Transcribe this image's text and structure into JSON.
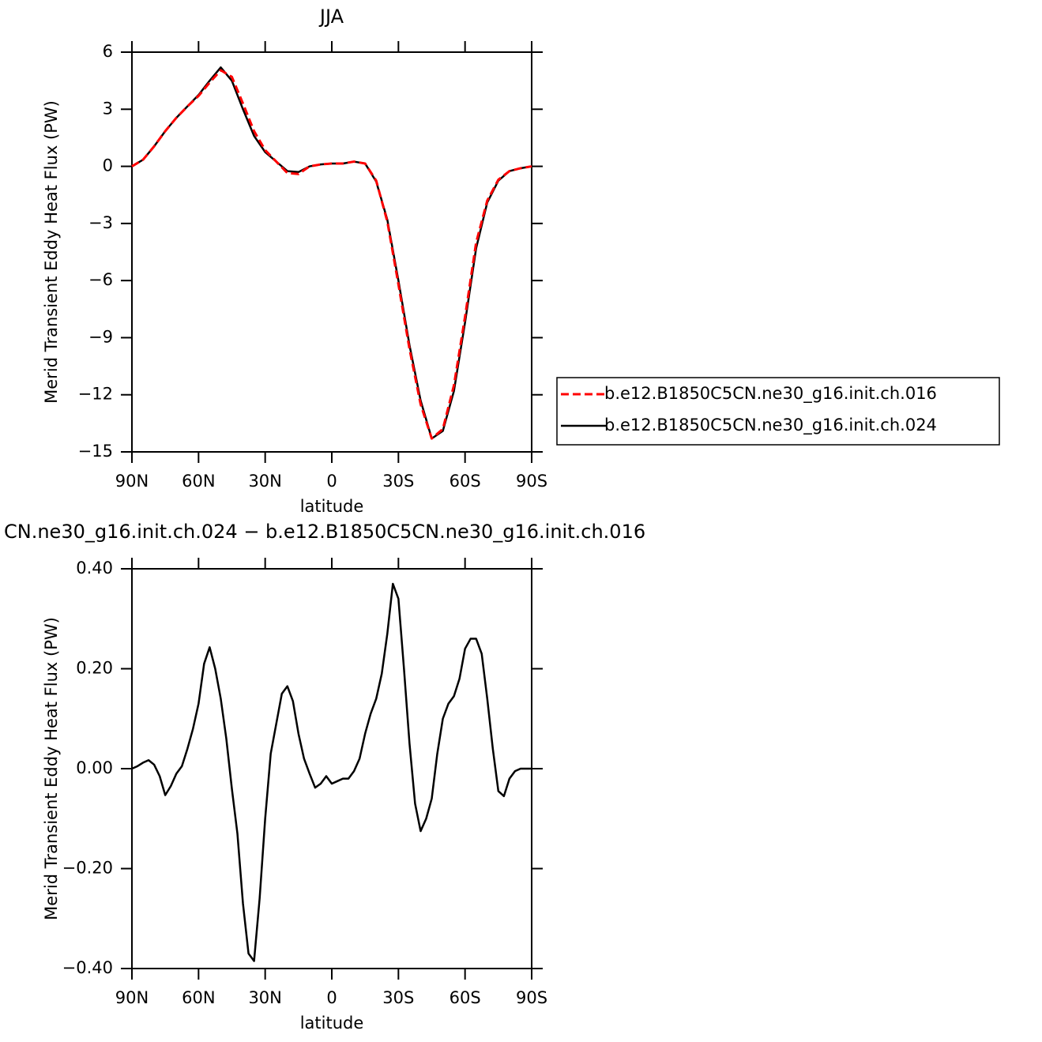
{
  "chart_data": [
    {
      "type": "line",
      "title": "JJA",
      "xlabel": "latitude",
      "ylabel": "Merid Transient Eddy Heat Flux (PW)",
      "x": [
        90,
        85,
        80,
        75,
        70,
        65,
        60,
        55,
        50,
        45,
        40,
        35,
        30,
        25,
        20,
        15,
        10,
        5,
        0,
        -5,
        -10,
        -15,
        -20,
        -25,
        -30,
        -35,
        -40,
        -45,
        -50,
        -55,
        -60,
        -65,
        -70,
        -75,
        -80,
        -85,
        -90
      ],
      "series": [
        {
          "name": "b.e12.B1850C5CN.ne30_g16.init.ch.016",
          "color": "#ff0000",
          "dash": true,
          "values": [
            0,
            0.35,
            1.05,
            1.85,
            2.55,
            3.15,
            3.7,
            4.4,
            5.05,
            4.7,
            3.3,
            1.85,
            0.85,
            0.25,
            -0.35,
            -0.4,
            0.0,
            0.1,
            0.15,
            0.15,
            0.25,
            0.15,
            -0.75,
            -2.9,
            -6.2,
            -9.6,
            -12.5,
            -14.3,
            -13.8,
            -11.5,
            -7.9,
            -4.0,
            -1.8,
            -0.7,
            -0.25,
            -0.1,
            0
          ]
        },
        {
          "name": "b.e12.B1850C5CN.ne30_g16.init.ch.024",
          "color": "#000000",
          "dash": false,
          "values": [
            0,
            0.35,
            1.05,
            1.85,
            2.55,
            3.15,
            3.75,
            4.5,
            5.2,
            4.5,
            3.0,
            1.6,
            0.75,
            0.25,
            -0.25,
            -0.3,
            0.0,
            0.1,
            0.15,
            0.15,
            0.25,
            0.15,
            -0.8,
            -2.8,
            -6.0,
            -9.4,
            -12.3,
            -14.3,
            -13.9,
            -11.8,
            -8.2,
            -4.3,
            -1.9,
            -0.75,
            -0.25,
            -0.1,
            0
          ]
        }
      ],
      "xlim": [
        90,
        -90
      ],
      "xticks": [
        {
          "value": 90,
          "label": "90N"
        },
        {
          "value": 60,
          "label": "60N"
        },
        {
          "value": 30,
          "label": "30N"
        },
        0,
        {
          "value": -30,
          "label": "30S"
        },
        {
          "value": -60,
          "label": "60S"
        },
        {
          "value": -90,
          "label": "90S"
        }
      ],
      "ylim": [
        -15,
        6
      ],
      "yticks": [
        6,
        3,
        0,
        {
          "value": -3,
          "label": "−3"
        },
        {
          "value": -6,
          "label": "−6"
        },
        {
          "value": -9,
          "label": "−9"
        },
        {
          "value": -12,
          "label": "−12"
        },
        {
          "value": -15,
          "label": "−15"
        }
      ],
      "legend": "right"
    },
    {
      "type": "line",
      "title": "CN.ne30_g16.init.ch.024 − b.e12.B1850C5CN.ne30_g16.init.ch.016",
      "xlabel": "latitude",
      "ylabel": "Merid Transient Eddy Heat Flux (PW)",
      "x": [
        90,
        87.5,
        85,
        82.5,
        80,
        77.5,
        75,
        72.5,
        70,
        67.5,
        65,
        62.5,
        60,
        57.5,
        55,
        52.5,
        50,
        47.5,
        45,
        42.5,
        40,
        37.5,
        35,
        32.5,
        30,
        27.5,
        25,
        22.5,
        20,
        17.5,
        15,
        12.5,
        10,
        7.5,
        5,
        2.5,
        0,
        -2.5,
        -5,
        -7.5,
        -10,
        -12.5,
        -15,
        -17.5,
        -20,
        -22.5,
        -25,
        -27.5,
        -30,
        -32.5,
        -35,
        -37.5,
        -40,
        -42.5,
        -45,
        -47.5,
        -50,
        -52.5,
        -55,
        -57.5,
        -60,
        -62.5,
        -65,
        -67.5,
        -70,
        -72.5,
        -75,
        -77.5,
        -80,
        -82.5,
        -85,
        -87.5,
        -90
      ],
      "series": [
        {
          "color": "#000000",
          "dash": false,
          "values": [
            0,
            0.005,
            0.012,
            0.017,
            0.008,
            -0.015,
            -0.053,
            -0.035,
            -0.01,
            0.005,
            0.04,
            0.08,
            0.13,
            0.21,
            0.243,
            0.2,
            0.14,
            0.06,
            -0.04,
            -0.13,
            -0.27,
            -0.37,
            -0.385,
            -0.26,
            -0.1,
            0.03,
            0.09,
            0.15,
            0.165,
            0.135,
            0.07,
            0.02,
            -0.01,
            -0.038,
            -0.03,
            -0.015,
            -0.03,
            -0.025,
            -0.02,
            -0.02,
            -0.005,
            0.02,
            0.07,
            0.11,
            0.14,
            0.19,
            0.27,
            0.37,
            0.34,
            0.2,
            0.05,
            -0.07,
            -0.125,
            -0.1,
            -0.06,
            0.03,
            0.1,
            0.13,
            0.145,
            0.18,
            0.24,
            0.26,
            0.26,
            0.23,
            0.14,
            0.04,
            -0.045,
            -0.055,
            -0.02,
            -0.005,
            0,
            0,
            0
          ]
        }
      ],
      "xlim": [
        90,
        -90
      ],
      "xticks": [
        {
          "value": 90,
          "label": "90N"
        },
        {
          "value": 60,
          "label": "60N"
        },
        {
          "value": 30,
          "label": "30N"
        },
        0,
        {
          "value": -30,
          "label": "30S"
        },
        {
          "value": -60,
          "label": "60S"
        },
        {
          "value": -90,
          "label": "90S"
        }
      ],
      "ylim": [
        -0.4,
        0.4
      ],
      "yticks": [
        {
          "value": 0.4,
          "label": "0.40"
        },
        {
          "value": 0.2,
          "label": "0.20"
        },
        {
          "value": 0,
          "label": "0.00"
        },
        {
          "value": -0.2,
          "label": "−0.20"
        },
        {
          "value": -0.4,
          "label": "−0.40"
        }
      ]
    }
  ]
}
